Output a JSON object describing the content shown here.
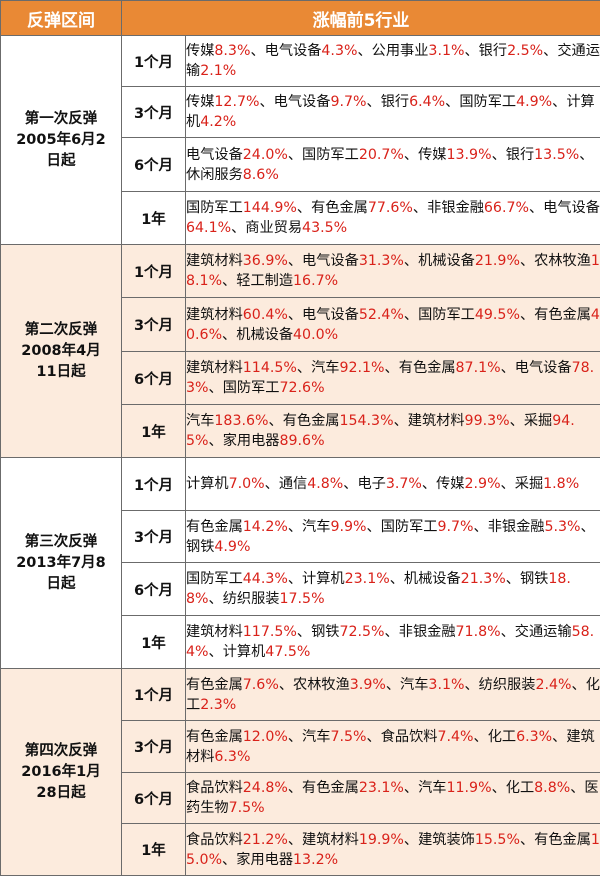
{
  "header": {
    "col_period": "反弹区间",
    "col_industries": "涨幅前5行业"
  },
  "colors": {
    "header_bg": "#e98935",
    "header_text": "#ffffff",
    "percent_text": "#d9221a",
    "band_fill": "#fcebdd"
  },
  "groups": [
    {
      "period_lines": [
        "第一次反弹",
        "2005年6月2",
        "日起"
      ],
      "rows": [
        {
          "duration": "1个月",
          "items": [
            {
              "name": "传媒",
              "pct": "8.3%"
            },
            {
              "name": "电气设备",
              "pct": "4.3%"
            },
            {
              "name": "公用事业",
              "pct": "3.1%"
            },
            {
              "name": "银行",
              "pct": "2.5%"
            },
            {
              "name": "交通运输",
              "pct": "2.1%"
            }
          ]
        },
        {
          "duration": "3个月",
          "items": [
            {
              "name": "传媒",
              "pct": "12.7%"
            },
            {
              "name": "电气设备",
              "pct": "9.7%"
            },
            {
              "name": "银行",
              "pct": "6.4%"
            },
            {
              "name": "国防军工",
              "pct": "4.9%"
            },
            {
              "name": "计算机",
              "pct": "4.2%"
            }
          ]
        },
        {
          "duration": "6个月",
          "items": [
            {
              "name": "电气设备",
              "pct": "24.0%"
            },
            {
              "name": "国防军工",
              "pct": "20.7%"
            },
            {
              "name": "传媒",
              "pct": "13.9%"
            },
            {
              "name": "银行",
              "pct": "13.5%"
            },
            {
              "name": "休闲服务",
              "pct": "8.6%"
            }
          ]
        },
        {
          "duration": "1年",
          "items": [
            {
              "name": "国防军工",
              "pct": "144.9%"
            },
            {
              "name": "有色金属",
              "pct": "77.6%"
            },
            {
              "name": "非银金融",
              "pct": "66.7%"
            },
            {
              "name": "电气设备",
              "pct": "64.1%"
            },
            {
              "name": "商业贸易",
              "pct": "43.5%"
            }
          ]
        }
      ]
    },
    {
      "period_lines": [
        "第二次反弹",
        "2008年4月",
        "11日起"
      ],
      "rows": [
        {
          "duration": "1个月",
          "items": [
            {
              "name": "建筑材料",
              "pct": "36.9%"
            },
            {
              "name": "电气设备",
              "pct": "31.3%"
            },
            {
              "name": "机械设备",
              "pct": "21.9%"
            },
            {
              "name": "农林牧渔",
              "pct": "18.1%"
            },
            {
              "name": "轻工制造",
              "pct": "16.7%"
            }
          ]
        },
        {
          "duration": "3个月",
          "items": [
            {
              "name": "建筑材料",
              "pct": "60.4%"
            },
            {
              "name": "电气设备",
              "pct": "52.4%"
            },
            {
              "name": "国防军工",
              "pct": "49.5%"
            },
            {
              "name": "有色金属",
              "pct": "40.6%"
            },
            {
              "name": "机械设备",
              "pct": "40.0%"
            }
          ]
        },
        {
          "duration": "6个月",
          "items": [
            {
              "name": "建筑材料",
              "pct": "114.5%"
            },
            {
              "name": "汽车",
              "pct": "92.1%"
            },
            {
              "name": "有色金属",
              "pct": "87.1%"
            },
            {
              "name": "电气设备",
              "pct": "78.3%"
            },
            {
              "name": "国防军工",
              "pct": "72.6%"
            }
          ]
        },
        {
          "duration": "1年",
          "items": [
            {
              "name": "汽车",
              "pct": "183.6%"
            },
            {
              "name": "有色金属",
              "pct": "154.3%"
            },
            {
              "name": "建筑材料",
              "pct": "99.3%"
            },
            {
              "name": "采掘",
              "pct": "94.5%"
            },
            {
              "name": "家用电器",
              "pct": "89.6%"
            }
          ]
        }
      ]
    },
    {
      "period_lines": [
        "第三次反弹",
        "2013年7月8",
        "日起"
      ],
      "rows": [
        {
          "duration": "1个月",
          "items": [
            {
              "name": "计算机",
              "pct": "7.0%"
            },
            {
              "name": "通信",
              "pct": "4.8%"
            },
            {
              "name": "电子",
              "pct": "3.7%"
            },
            {
              "name": "传媒",
              "pct": "2.9%"
            },
            {
              "name": "采掘",
              "pct": "1.8%"
            }
          ]
        },
        {
          "duration": "3个月",
          "items": [
            {
              "name": "有色金属",
              "pct": "14.2%"
            },
            {
              "name": "汽车",
              "pct": "9.9%"
            },
            {
              "name": "国防军工",
              "pct": "9.7%"
            },
            {
              "name": "非银金融",
              "pct": "5.3%"
            },
            {
              "name": "钢铁",
              "pct": "4.9%"
            }
          ]
        },
        {
          "duration": "6个月",
          "items": [
            {
              "name": "国防军工",
              "pct": "44.3%"
            },
            {
              "name": "计算机",
              "pct": "23.1%"
            },
            {
              "name": "机械设备",
              "pct": "21.3%"
            },
            {
              "name": "钢铁",
              "pct": "18.8%"
            },
            {
              "name": "纺织服装",
              "pct": "17.5%"
            }
          ]
        },
        {
          "duration": "1年",
          "items": [
            {
              "name": "建筑材料",
              "pct": "117.5%"
            },
            {
              "name": "钢铁",
              "pct": "72.5%"
            },
            {
              "name": "非银金融",
              "pct": "71.8%"
            },
            {
              "name": "交通运输",
              "pct": "58.4%"
            },
            {
              "name": "计算机",
              "pct": "47.5%"
            }
          ]
        }
      ]
    },
    {
      "period_lines": [
        "第四次反弹",
        "2016年1月",
        "28日起"
      ],
      "rows": [
        {
          "duration": "1个月",
          "items": [
            {
              "name": "有色金属",
              "pct": "7.6%"
            },
            {
              "name": "农林牧渔",
              "pct": "3.9%"
            },
            {
              "name": "汽车",
              "pct": "3.1%"
            },
            {
              "name": "纺织服装",
              "pct": "2.4%"
            },
            {
              "name": "化工",
              "pct": "2.3%"
            }
          ]
        },
        {
          "duration": "3个月",
          "items": [
            {
              "name": "有色金属",
              "pct": "12.0%"
            },
            {
              "name": "汽车",
              "pct": "7.5%"
            },
            {
              "name": "食品饮料",
              "pct": "7.4%"
            },
            {
              "name": "化工",
              "pct": "6.3%"
            },
            {
              "name": "建筑材料",
              "pct": "6.3%"
            }
          ]
        },
        {
          "duration": "6个月",
          "items": [
            {
              "name": "食品饮料",
              "pct": "24.8%"
            },
            {
              "name": "有色金属",
              "pct": "23.1%"
            },
            {
              "name": "汽车",
              "pct": "11.9%"
            },
            {
              "name": "化工",
              "pct": "8.8%"
            },
            {
              "name": "医药生物",
              "pct": "7.5%"
            }
          ]
        },
        {
          "duration": "1年",
          "items": [
            {
              "name": "食品饮料",
              "pct": "21.2%"
            },
            {
              "name": "建筑材料",
              "pct": "19.9%"
            },
            {
              "name": "建筑装饰",
              "pct": "15.5%"
            },
            {
              "name": "有色金属",
              "pct": "15.0%"
            },
            {
              "name": "家用电器",
              "pct": "13.2%"
            }
          ]
        }
      ]
    }
  ]
}
